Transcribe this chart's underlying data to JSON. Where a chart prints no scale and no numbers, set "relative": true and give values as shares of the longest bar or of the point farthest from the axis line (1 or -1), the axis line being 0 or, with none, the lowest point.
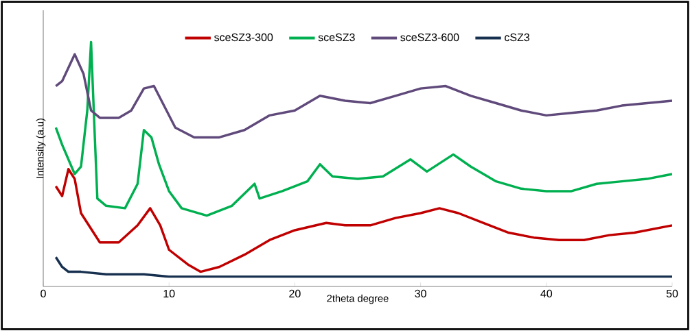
{
  "chart_data": {
    "type": "line",
    "xlabel": "2theta degree",
    "ylabel": "Intensity (a.u)",
    "relative": true,
    "xlim": [
      0,
      50
    ],
    "xticks": [
      0,
      10,
      20,
      30,
      40,
      50
    ],
    "legend": "top",
    "grid": false,
    "series": [
      {
        "name": "sceSZ3-300",
        "color": "#c00000",
        "x": [
          1,
          1.5,
          2,
          2.5,
          3,
          4,
          4.5,
          6,
          7.5,
          8.5,
          9.3,
          10,
          11.5,
          12.5,
          14,
          16,
          18,
          20,
          22.5,
          24,
          26,
          28,
          30,
          31.5,
          33,
          35,
          37,
          39,
          41,
          43,
          45,
          47,
          50
        ],
        "values": [
          0.41,
          0.37,
          0.48,
          0.44,
          0.3,
          0.22,
          0.18,
          0.18,
          0.25,
          0.32,
          0.25,
          0.15,
          0.09,
          0.06,
          0.08,
          0.13,
          0.19,
          0.23,
          0.26,
          0.25,
          0.25,
          0.28,
          0.3,
          0.32,
          0.3,
          0.26,
          0.22,
          0.2,
          0.19,
          0.19,
          0.21,
          0.22,
          0.25
        ]
      },
      {
        "name": "sceSZ3",
        "color": "#00b050",
        "x": [
          1,
          1.5,
          2.5,
          3,
          3.5,
          3.8,
          4.1,
          4.3,
          5,
          6.5,
          7.5,
          8,
          8.6,
          9.2,
          10,
          11,
          13,
          15,
          16.8,
          17.2,
          19,
          21,
          22,
          23,
          25,
          27,
          29.2,
          30.5,
          32.6,
          34,
          36,
          38,
          40,
          42,
          44,
          46,
          48,
          50
        ],
        "values": [
          0.65,
          0.58,
          0.46,
          0.49,
          0.72,
          1.0,
          0.61,
          0.36,
          0.33,
          0.32,
          0.42,
          0.64,
          0.61,
          0.5,
          0.39,
          0.32,
          0.29,
          0.33,
          0.42,
          0.36,
          0.39,
          0.43,
          0.5,
          0.45,
          0.44,
          0.45,
          0.52,
          0.47,
          0.54,
          0.49,
          0.43,
          0.4,
          0.39,
          0.39,
          0.42,
          0.43,
          0.44,
          0.46
        ]
      },
      {
        "name": "sceSZ3-600",
        "color": "#604a7b",
        "x": [
          1,
          1.5,
          2.5,
          3.2,
          3.8,
          4.5,
          6,
          7,
          8,
          8.8,
          9.5,
          10.5,
          12,
          14,
          16,
          18,
          20,
          22,
          24,
          26,
          28,
          30,
          32,
          34,
          36,
          38,
          40,
          42,
          44,
          46,
          48,
          50
        ],
        "values": [
          0.82,
          0.84,
          0.95,
          0.87,
          0.72,
          0.69,
          0.69,
          0.72,
          0.81,
          0.82,
          0.75,
          0.65,
          0.61,
          0.61,
          0.64,
          0.7,
          0.72,
          0.78,
          0.76,
          0.75,
          0.78,
          0.81,
          0.82,
          0.78,
          0.75,
          0.72,
          0.7,
          0.71,
          0.72,
          0.74,
          0.75,
          0.76
        ]
      },
      {
        "name": "cSZ3",
        "color": "#17304f",
        "x": [
          1,
          1.5,
          2,
          3,
          5,
          8,
          10,
          20,
          30,
          40,
          50
        ],
        "values": [
          0.12,
          0.08,
          0.06,
          0.06,
          0.05,
          0.05,
          0.04,
          0.04,
          0.04,
          0.04,
          0.04
        ]
      }
    ]
  }
}
